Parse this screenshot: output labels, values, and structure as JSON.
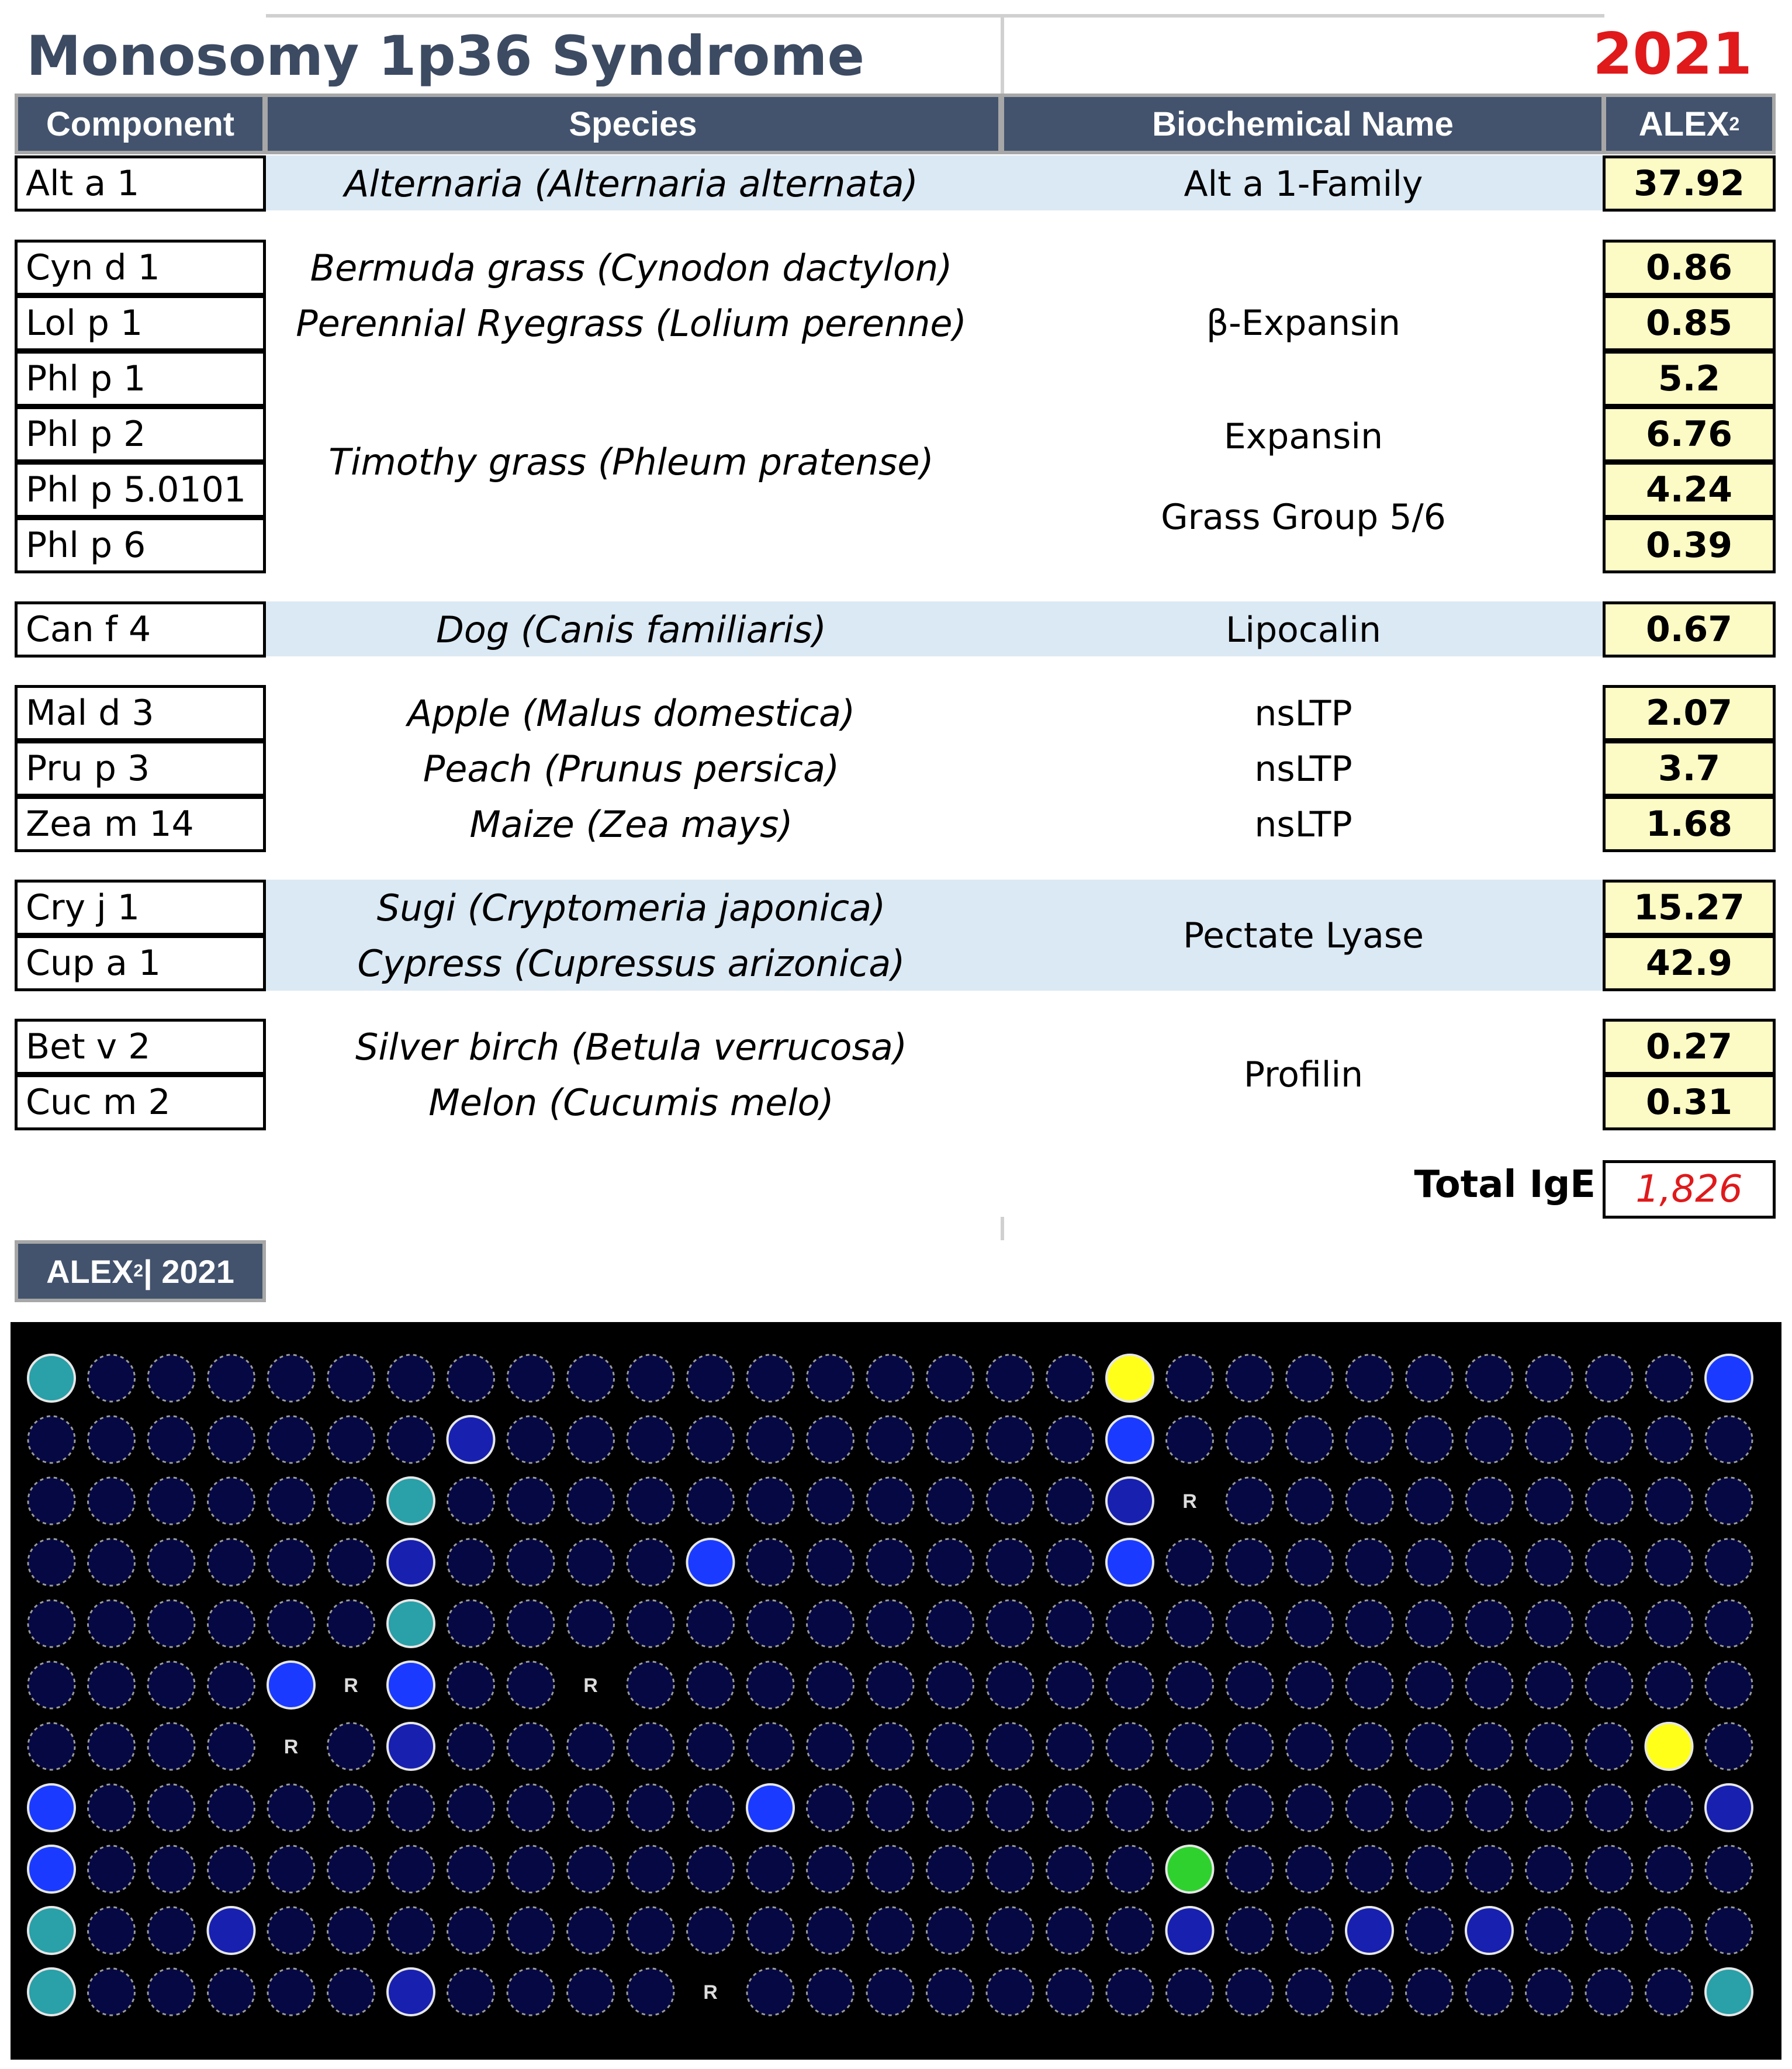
{
  "header": {
    "title": "Monosomy 1p36 Syndrome",
    "year": "2021"
  },
  "columns": {
    "component": "Component",
    "species": "Species",
    "biochemical": "Biochemical Name",
    "alex_base": "ALEX",
    "alex_sup": "2"
  },
  "rows": [
    {
      "component": "Alt a 1",
      "species": "Alternaria (Alternaria alternata)",
      "value": "37.92"
    },
    {
      "component": "Cyn d 1",
      "species": "Bermuda grass (Cynodon dactylon)",
      "value": "0.86"
    },
    {
      "component": "Lol p 1",
      "species": "Perennial Ryegrass (Lolium perenne)",
      "value": "0.85"
    },
    {
      "component": "Phl p 1",
      "value": "5.2"
    },
    {
      "component": "Phl p 2",
      "value": "6.76"
    },
    {
      "component": "Phl p 5.0101",
      "value": "4.24"
    },
    {
      "component": "Phl p 6",
      "value": "0.39"
    },
    {
      "component": "Can f 4",
      "species": "Dog (Canis familiaris)",
      "value": "0.67"
    },
    {
      "component": "Mal d 3",
      "species": "Apple (Malus domestica)",
      "value": "2.07"
    },
    {
      "component": "Pru p 3",
      "species": "Peach (Prunus persica)",
      "value": "3.7"
    },
    {
      "component": "Zea m 14",
      "species": "Maize (Zea mays)",
      "value": "1.68"
    },
    {
      "component": "Cry j 1",
      "species": "Sugi (Cryptomeria japonica)",
      "value": "15.27"
    },
    {
      "component": "Cup a 1",
      "species": "Cypress (Cupressus arizonica)",
      "value": "42.9"
    },
    {
      "component": "Bet v 2",
      "species": "Silver birch (Betula verrucosa)",
      "value": "0.27"
    },
    {
      "component": "Cuc m 2",
      "species": "Melon (Cucumis melo)",
      "value": "0.31"
    }
  ],
  "timothy_species": "Timothy grass (Phleum pratense)",
  "biochemical": {
    "alt": "Alt a 1-Family",
    "beta_expansin": "β-Expansin",
    "expansin": "Expansin",
    "grass_group": "Grass Group 5/6",
    "lipocalin": "Lipocalin",
    "nsltp_1": "nsLTP",
    "nsltp_2": "nsLTP",
    "nsltp_3": "nsLTP",
    "pectate_lyase": "Pectate Lyase",
    "profilin": "Profilin"
  },
  "total": {
    "label": "Total IgE",
    "value": "1,826"
  },
  "chip_badge": {
    "alex_base": "ALEX",
    "alex_sup": "2",
    "year": " | 2021"
  },
  "chip": {
    "reference_mark": "R",
    "colors": {
      "background": "#000000",
      "dim": "#0a0f7a",
      "blue": "#1a3bff",
      "teal": "#2aa0a8",
      "green": "#2fd12f",
      "yellow": "#ffff1a"
    }
  }
}
